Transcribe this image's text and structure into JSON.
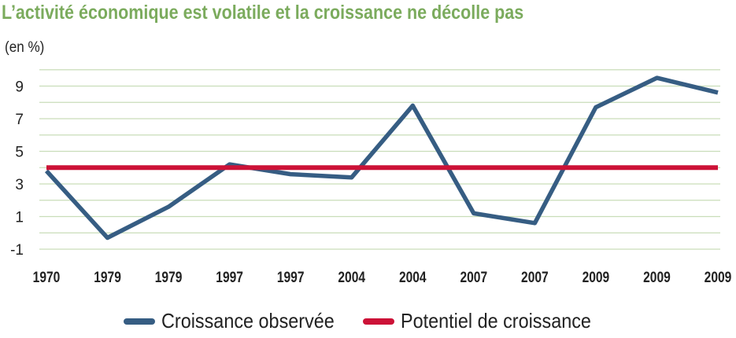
{
  "chart_data": {
    "type": "line",
    "title": "L’activité économique est volatile et la croissance ne décolle pas",
    "ylabel": "(en %)",
    "xlabel": "",
    "ylim": [
      -1,
      10
    ],
    "yticks": [
      "9",
      "7",
      "5",
      "3",
      "1",
      "-1"
    ],
    "categories": [
      "1970",
      "1979",
      "1979",
      "1997",
      "1997",
      "2004",
      "2004",
      "2007",
      "2007",
      "2009",
      "2009",
      "2009"
    ],
    "series": [
      {
        "name": "Croissance observée",
        "color": "#365d83",
        "values": [
          3.8,
          -0.3,
          1.6,
          4.2,
          3.6,
          3.4,
          7.8,
          1.2,
          0.6,
          7.7,
          9.5,
          8.6
        ]
      },
      {
        "name": "Potentiel de croissance",
        "color": "#cc1237",
        "values": [
          4.0,
          4.0,
          4.0,
          4.0,
          4.0,
          4.0,
          4.0,
          4.0,
          4.0,
          4.0,
          4.0,
          4.0
        ]
      }
    ],
    "grid": true,
    "legend_position": "bottom"
  }
}
